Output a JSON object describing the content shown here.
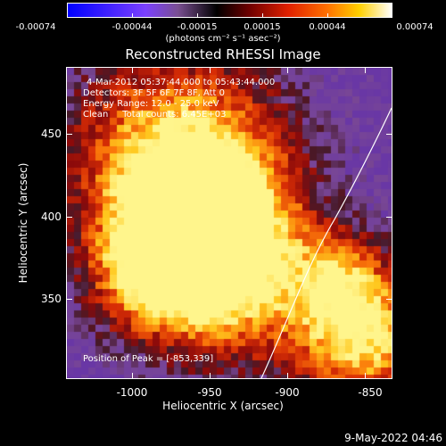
{
  "colorbar": {
    "ticks": [
      "-0.00074",
      "-0.00044",
      "-0.00015",
      "0.00015",
      "0.00044",
      "0.00074"
    ],
    "units": "(photons cm⁻² s⁻¹ asec⁻²)"
  },
  "title": "Reconstructed RHESSI Image",
  "info": {
    "time": "4-Mar-2012 05:37:44.000 to 05:43:44.000",
    "detectors": "Detectors: 3F 5F 6F 7F 8F, Att 0",
    "energy": "Energy Range: 12.0 - 25.0 keV",
    "clean": "Clean     Total counts: 6.45E+03",
    "peak": "Position of Peak = [-853,339]"
  },
  "axes": {
    "xlabel": "Heliocentric X (arcsec)",
    "ylabel": "Heliocentric Y (arcsec)",
    "xticks": [
      "-1000",
      "-950",
      "-900",
      "-850"
    ],
    "yticks": [
      "450",
      "400",
      "350"
    ]
  },
  "date": "9-May-2022 04:46",
  "colors": {
    "map_low": "#6e3aa8",
    "map_mid": "#c8200a",
    "map_high": "#fff08a"
  }
}
